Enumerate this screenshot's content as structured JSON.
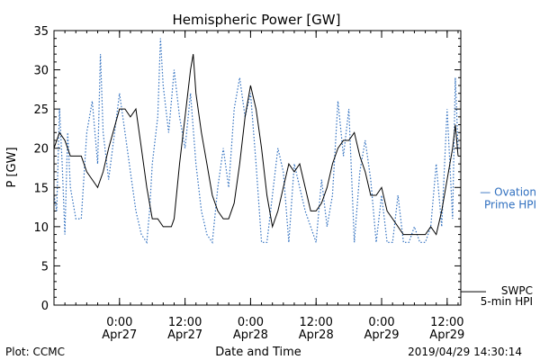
{
  "chart_data": {
    "type": "line",
    "title": "Hemispheric Power [GW]",
    "xlabel": "Date and Time",
    "ylabel": "P [GW]",
    "ylim": [
      0,
      35
    ],
    "yticks": [
      0,
      5,
      10,
      15,
      20,
      25,
      30,
      35
    ],
    "xlim": [
      "2019-04-26 12:00",
      "2019-04-29 14:30"
    ],
    "xticks": [
      {
        "x": "2019-04-27 00:00",
        "label": [
          "0:00",
          "Apr27"
        ]
      },
      {
        "x": "2019-04-27 12:00",
        "label": [
          "12:00",
          "Apr27"
        ]
      },
      {
        "x": "2019-04-28 00:00",
        "label": [
          "0:00",
          "Apr28"
        ]
      },
      {
        "x": "2019-04-28 12:00",
        "label": [
          "12:00",
          "Apr28"
        ]
      },
      {
        "x": "2019-04-29 00:00",
        "label": [
          "0:00",
          "Apr29"
        ]
      },
      {
        "x": "2019-04-29 12:00",
        "label": [
          "12:00",
          "Apr29"
        ]
      }
    ],
    "legend_placement": "right",
    "footer_left": "Plot: CCMC",
    "footer_right": "2019/04/29 14:30:14",
    "series": [
      {
        "name": "SWPC 5-min HPI",
        "label_lines": [
          "SWPC",
          "5-min HPI"
        ],
        "color": "#000000",
        "style": "solid",
        "points": [
          [
            "2019-04-26 12:00",
            20
          ],
          [
            "2019-04-26 13:00",
            22
          ],
          [
            "2019-04-26 14:00",
            21
          ],
          [
            "2019-04-26 15:00",
            19
          ],
          [
            "2019-04-26 17:00",
            19
          ],
          [
            "2019-04-26 18:00",
            17
          ],
          [
            "2019-04-26 19:00",
            16
          ],
          [
            "2019-04-26 20:00",
            15
          ],
          [
            "2019-04-26 21:00",
            17
          ],
          [
            "2019-04-26 22:00",
            20
          ],
          [
            "2019-04-27 00:00",
            25
          ],
          [
            "2019-04-27 01:00",
            25
          ],
          [
            "2019-04-27 02:00",
            24
          ],
          [
            "2019-04-27 03:00",
            25
          ],
          [
            "2019-04-27 04:00",
            20
          ],
          [
            "2019-04-27 05:00",
            15
          ],
          [
            "2019-04-27 06:00",
            11
          ],
          [
            "2019-04-27 07:00",
            11
          ],
          [
            "2019-04-27 08:00",
            10
          ],
          [
            "2019-04-27 09:30",
            10
          ],
          [
            "2019-04-27 10:00",
            11
          ],
          [
            "2019-04-27 11:00",
            18
          ],
          [
            "2019-04-27 12:00",
            24
          ],
          [
            "2019-04-27 13:00",
            30
          ],
          [
            "2019-04-27 13:30",
            32
          ],
          [
            "2019-04-27 14:00",
            27
          ],
          [
            "2019-04-27 15:00",
            22
          ],
          [
            "2019-04-27 16:00",
            18
          ],
          [
            "2019-04-27 17:00",
            14
          ],
          [
            "2019-04-27 18:00",
            12
          ],
          [
            "2019-04-27 19:00",
            11
          ],
          [
            "2019-04-27 20:00",
            11
          ],
          [
            "2019-04-27 21:00",
            13
          ],
          [
            "2019-04-27 22:00",
            18
          ],
          [
            "2019-04-27 23:00",
            24
          ],
          [
            "2019-04-28 00:00",
            28
          ],
          [
            "2019-04-28 01:00",
            25
          ],
          [
            "2019-04-28 02:00",
            20
          ],
          [
            "2019-04-28 03:00",
            14
          ],
          [
            "2019-04-28 04:00",
            10
          ],
          [
            "2019-04-28 05:00",
            12
          ],
          [
            "2019-04-28 06:00",
            15
          ],
          [
            "2019-04-28 07:00",
            18
          ],
          [
            "2019-04-28 08:00",
            17
          ],
          [
            "2019-04-28 09:00",
            18
          ],
          [
            "2019-04-28 10:00",
            15
          ],
          [
            "2019-04-28 11:00",
            12
          ],
          [
            "2019-04-28 12:00",
            12
          ],
          [
            "2019-04-28 13:00",
            13
          ],
          [
            "2019-04-28 14:00",
            15
          ],
          [
            "2019-04-28 15:00",
            18
          ],
          [
            "2019-04-28 16:00",
            20
          ],
          [
            "2019-04-28 17:00",
            21
          ],
          [
            "2019-04-28 18:00",
            21
          ],
          [
            "2019-04-28 19:00",
            22
          ],
          [
            "2019-04-28 20:00",
            19
          ],
          [
            "2019-04-28 21:00",
            17
          ],
          [
            "2019-04-28 22:00",
            14
          ],
          [
            "2019-04-28 23:00",
            14
          ],
          [
            "2019-04-29 00:00",
            15
          ],
          [
            "2019-04-29 01:00",
            12
          ],
          [
            "2019-04-29 02:00",
            11
          ],
          [
            "2019-04-29 03:00",
            10
          ],
          [
            "2019-04-29 04:00",
            9
          ],
          [
            "2019-04-29 06:00",
            9
          ],
          [
            "2019-04-29 08:00",
            9
          ],
          [
            "2019-04-29 09:00",
            10
          ],
          [
            "2019-04-29 10:00",
            9
          ],
          [
            "2019-04-29 11:00",
            12
          ],
          [
            "2019-04-29 12:00",
            16
          ],
          [
            "2019-04-29 13:00",
            20
          ],
          [
            "2019-04-29 13:30",
            23
          ],
          [
            "2019-04-29 14:00",
            19
          ]
        ]
      },
      {
        "name": "Ovation Prime HPI",
        "label_lines": [
          "— Ovation",
          "Prime HPI"
        ],
        "color": "#2f6fbf",
        "style": "dotted",
        "points": [
          [
            "2019-04-26 12:00",
            14
          ],
          [
            "2019-04-26 12:30",
            12
          ],
          [
            "2019-04-26 13:00",
            25
          ],
          [
            "2019-04-26 13:30",
            18
          ],
          [
            "2019-04-26 14:00",
            9
          ],
          [
            "2019-04-26 14:30",
            22
          ],
          [
            "2019-04-26 15:00",
            15
          ],
          [
            "2019-04-26 16:00",
            11
          ],
          [
            "2019-04-26 17:00",
            11
          ],
          [
            "2019-04-26 18:00",
            22
          ],
          [
            "2019-04-26 19:00",
            26
          ],
          [
            "2019-04-26 20:00",
            18
          ],
          [
            "2019-04-26 20:30",
            32
          ],
          [
            "2019-04-26 21:00",
            22
          ],
          [
            "2019-04-26 22:00",
            16
          ],
          [
            "2019-04-27 00:00",
            27
          ],
          [
            "2019-04-27 01:00",
            22
          ],
          [
            "2019-04-27 02:00",
            17
          ],
          [
            "2019-04-27 03:00",
            12
          ],
          [
            "2019-04-27 04:00",
            9
          ],
          [
            "2019-04-27 05:00",
            8
          ],
          [
            "2019-04-27 05:30",
            12
          ],
          [
            "2019-04-27 06:00",
            18
          ],
          [
            "2019-04-27 07:00",
            24
          ],
          [
            "2019-04-27 07:30",
            34
          ],
          [
            "2019-04-27 08:00",
            28
          ],
          [
            "2019-04-27 09:00",
            22
          ],
          [
            "2019-04-27 10:00",
            30
          ],
          [
            "2019-04-27 11:00",
            24
          ],
          [
            "2019-04-27 12:00",
            20
          ],
          [
            "2019-04-27 13:00",
            27
          ],
          [
            "2019-04-27 14:00",
            18
          ],
          [
            "2019-04-27 15:00",
            12
          ],
          [
            "2019-04-27 16:00",
            9
          ],
          [
            "2019-04-27 17:00",
            8
          ],
          [
            "2019-04-27 18:00",
            15
          ],
          [
            "2019-04-27 19:00",
            20
          ],
          [
            "2019-04-27 20:00",
            15
          ],
          [
            "2019-04-27 21:00",
            25
          ],
          [
            "2019-04-27 22:00",
            29
          ],
          [
            "2019-04-27 23:00",
            24
          ],
          [
            "2019-04-28 00:00",
            27
          ],
          [
            "2019-04-28 01:00",
            18
          ],
          [
            "2019-04-28 02:00",
            8
          ],
          [
            "2019-04-28 03:00",
            8
          ],
          [
            "2019-04-28 04:00",
            14
          ],
          [
            "2019-04-28 05:00",
            20
          ],
          [
            "2019-04-28 06:00",
            17
          ],
          [
            "2019-04-28 07:00",
            8
          ],
          [
            "2019-04-28 08:00",
            18
          ],
          [
            "2019-04-28 09:00",
            15
          ],
          [
            "2019-04-28 10:00",
            12
          ],
          [
            "2019-04-28 11:00",
            10
          ],
          [
            "2019-04-28 12:00",
            8
          ],
          [
            "2019-04-28 13:00",
            16
          ],
          [
            "2019-04-28 14:00",
            10
          ],
          [
            "2019-04-28 15:00",
            14
          ],
          [
            "2019-04-28 16:00",
            26
          ],
          [
            "2019-04-28 17:00",
            19
          ],
          [
            "2019-04-28 18:00",
            25
          ],
          [
            "2019-04-28 19:00",
            8
          ],
          [
            "2019-04-28 20:00",
            17
          ],
          [
            "2019-04-28 21:00",
            21
          ],
          [
            "2019-04-28 22:00",
            16
          ],
          [
            "2019-04-28 23:00",
            8
          ],
          [
            "2019-04-29 00:00",
            14
          ],
          [
            "2019-04-29 01:00",
            8
          ],
          [
            "2019-04-29 02:00",
            8
          ],
          [
            "2019-04-29 03:00",
            14
          ],
          [
            "2019-04-29 04:00",
            8
          ],
          [
            "2019-04-29 05:00",
            8
          ],
          [
            "2019-04-29 06:00",
            10
          ],
          [
            "2019-04-29 07:00",
            8
          ],
          [
            "2019-04-29 08:00",
            8
          ],
          [
            "2019-04-29 09:00",
            10
          ],
          [
            "2019-04-29 10:00",
            18
          ],
          [
            "2019-04-29 11:00",
            10
          ],
          [
            "2019-04-29 12:00",
            25
          ],
          [
            "2019-04-29 13:00",
            11
          ],
          [
            "2019-04-29 13:30",
            29
          ],
          [
            "2019-04-29 14:00",
            20
          ]
        ]
      }
    ]
  }
}
